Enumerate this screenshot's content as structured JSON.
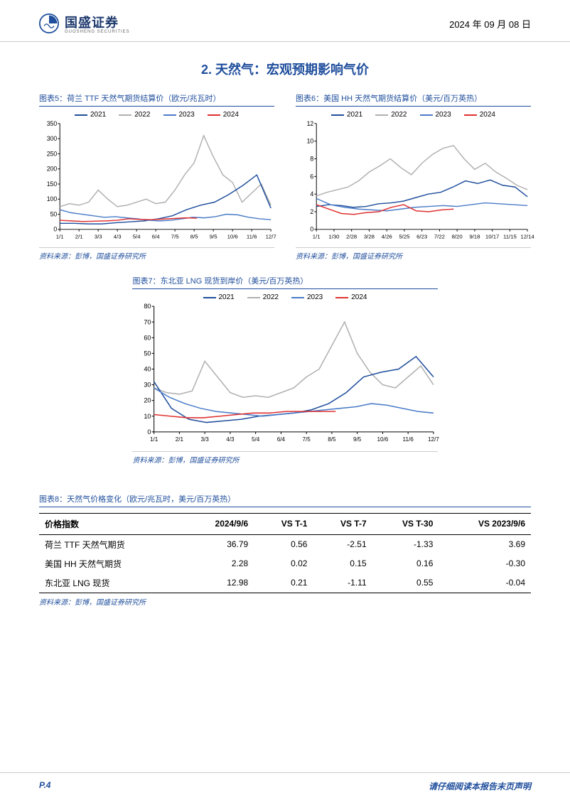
{
  "header": {
    "company": "国盛证券",
    "company_sub": "GUOSHENG SECURITIES",
    "date": "2024 年 09 月 08 日"
  },
  "section": {
    "title": "2. 天然气：宏观预期影响气价"
  },
  "legend_labels": {
    "y2021": "2021",
    "y2022": "2022",
    "y2023": "2023",
    "y2024": "2024"
  },
  "colors": {
    "y2021": "#1f4e9c",
    "y2022": "#b0b0b0",
    "y2023": "#4a7bc8",
    "y2024": "#e03030",
    "axis": "#000000",
    "grid": "#d0d0d0",
    "caption": "#1f4e9c",
    "bg": "#ffffff"
  },
  "chart5": {
    "caption": "图表5：荷兰 TTF 天然气期货结算价（欧元/兆瓦时）",
    "source": "资料来源：彭博，国盛证券研究所",
    "type": "line",
    "ylim": [
      0,
      350
    ],
    "ytick_step": 50,
    "xticks": [
      "1/1",
      "2/1",
      "3/3",
      "4/3",
      "5/4",
      "6/4",
      "7/5",
      "8/5",
      "9/5",
      "10/6",
      "11/6",
      "12/7"
    ],
    "series": {
      "y2021": [
        20,
        20,
        18,
        18,
        22,
        25,
        28,
        35,
        45,
        65,
        80,
        90,
        115,
        145,
        180,
        70
      ],
      "y2022": [
        75,
        85,
        80,
        90,
        130,
        100,
        75,
        80,
        90,
        100,
        85,
        90,
        130,
        180,
        220,
        310,
        240,
        180,
        155,
        90,
        120,
        150,
        80
      ],
      "y2023": [
        65,
        55,
        50,
        45,
        40,
        42,
        38,
        35,
        30,
        28,
        30,
        35,
        40,
        38,
        42,
        50,
        48,
        40,
        35,
        32
      ],
      "y2024": [
        30,
        28,
        26,
        27,
        28,
        30,
        35,
        33,
        32,
        34,
        36,
        38,
        37
      ]
    }
  },
  "chart6": {
    "caption": "图表6：美国 HH 天然气期货结算价（美元/百万英热）",
    "source": "资料来源：彭博，国盛证券研究所",
    "type": "line",
    "ylim": [
      0,
      12
    ],
    "ytick_step": 2,
    "xticks": [
      "1/1",
      "1/30",
      "2/28",
      "3/28",
      "4/26",
      "5/25",
      "6/23",
      "7/22",
      "8/20",
      "9/18",
      "10/17",
      "11/15",
      "12/14"
    ],
    "series": {
      "y2021": [
        2.6,
        2.8,
        2.7,
        2.5,
        2.6,
        2.9,
        3.0,
        3.2,
        3.6,
        4.0,
        4.2,
        4.8,
        5.5,
        5.2,
        5.6,
        5.0,
        4.8,
        3.7
      ],
      "y2022": [
        3.8,
        4.2,
        4.5,
        4.8,
        5.5,
        6.5,
        7.2,
        8.0,
        7.0,
        6.2,
        7.5,
        8.5,
        9.2,
        9.5,
        8.0,
        6.8,
        7.5,
        6.5,
        5.8,
        5.0,
        4.5
      ],
      "y2023": [
        3.5,
        2.8,
        2.5,
        2.3,
        2.2,
        2.1,
        2.3,
        2.5,
        2.6,
        2.7,
        2.6,
        2.8,
        3.0,
        2.9,
        2.8,
        2.7
      ],
      "y2024": [
        2.8,
        2.3,
        1.8,
        1.7,
        1.9,
        2.0,
        2.5,
        2.8,
        2.1,
        2.0,
        2.2,
        2.3
      ]
    }
  },
  "chart7": {
    "caption": "图表7：东北亚 LNG 现货到岸价（美元/百万英热）",
    "source": "资料来源：彭博，国盛证券研究所",
    "type": "line",
    "ylim": [
      0,
      80
    ],
    "ytick_step": 10,
    "xticks": [
      "1/1",
      "2/1",
      "3/3",
      "4/3",
      "5/4",
      "6/4",
      "7/5",
      "8/5",
      "9/5",
      "10/6",
      "11/6",
      "12/7"
    ],
    "series": {
      "y2021": [
        32,
        15,
        8,
        6,
        7,
        8,
        10,
        11,
        12,
        14,
        18,
        25,
        35,
        38,
        40,
        48,
        35
      ],
      "y2022": [
        28,
        25,
        24,
        26,
        45,
        35,
        25,
        22,
        23,
        22,
        25,
        28,
        35,
        40,
        55,
        70,
        50,
        38,
        30,
        28,
        35,
        42,
        30
      ],
      "y2023": [
        28,
        22,
        18,
        15,
        13,
        12,
        11,
        10,
        11,
        12,
        13,
        14,
        15,
        16,
        18,
        17,
        15,
        13,
        12
      ],
      "y2024": [
        11,
        10,
        9,
        9,
        10,
        11,
        12,
        12,
        13,
        13,
        13,
        13
      ]
    }
  },
  "table8": {
    "caption": "图表8：天然气价格变化（欧元/兆瓦时，美元/百万英热）",
    "source": "资料来源：彭博，国盛证券研究所",
    "columns": [
      "价格指数",
      "2024/9/6",
      "VS T-1",
      "VS T-7",
      "VS T-30",
      "VS 2023/9/6"
    ],
    "rows": [
      [
        "荷兰 TTF 天然气期货",
        "36.79",
        "0.56",
        "-2.51",
        "-1.33",
        "3.69"
      ],
      [
        "美国 HH 天然气期货",
        "2.28",
        "0.02",
        "0.15",
        "0.16",
        "-0.30"
      ],
      [
        "东北亚 LNG 现货",
        "12.98",
        "0.21",
        "-1.11",
        "0.55",
        "-0.04"
      ]
    ]
  },
  "footer": {
    "page": "P.4",
    "note": "请仔细阅读本报告末页声明"
  }
}
